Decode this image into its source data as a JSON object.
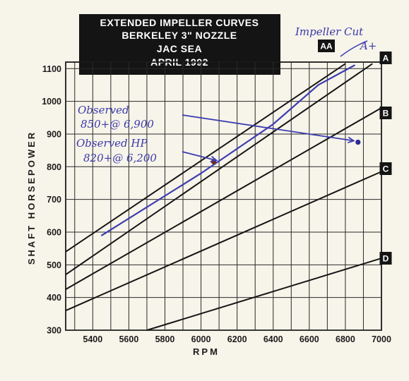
{
  "chart_data": {
    "type": "line",
    "title_lines": [
      "EXTENDED IMPELLER CURVES",
      "BERKELEY 3\" NOZZLE",
      "JAC SEA",
      "APRIL 1992"
    ],
    "xlabel": "RPM",
    "ylabel": "SHAFT HORSEPOWER",
    "xlim": [
      5250,
      7000
    ],
    "ylim": [
      300,
      1120
    ],
    "x_ticks": [
      5400,
      5600,
      5800,
      6000,
      6200,
      6400,
      6600,
      6800,
      7000
    ],
    "y_ticks": [
      300,
      400,
      500,
      600,
      700,
      800,
      900,
      1000,
      1100
    ],
    "grid": true,
    "series": [
      {
        "name": "AA",
        "points": [
          [
            5250,
            540
          ],
          [
            6800,
            1115
          ]
        ]
      },
      {
        "name": "A",
        "points": [
          [
            5250,
            470
          ],
          [
            6950,
            1115
          ]
        ]
      },
      {
        "name": "B",
        "points": [
          [
            5250,
            425
          ],
          [
            7000,
            980
          ]
        ]
      },
      {
        "name": "C",
        "points": [
          [
            5250,
            360
          ],
          [
            7000,
            785
          ]
        ]
      },
      {
        "name": "D",
        "points": [
          [
            5700,
            300
          ],
          [
            7000,
            520
          ]
        ]
      }
    ],
    "annotations": {
      "impeller_cut": "Impeller Cut",
      "a_plus": "A+",
      "observed_1_line1": "Observed",
      "observed_1_line2": "850+@ 6,900",
      "observed_2_line1": "Observed HP",
      "observed_2_line2": "820+@ 6,200",
      "handdrawn_curve": [
        [
          5450,
          590
        ],
        [
          6000,
          780
        ],
        [
          6400,
          930
        ],
        [
          6650,
          1050
        ],
        [
          6850,
          1110
        ]
      ],
      "observed_points": [
        [
          6070,
          815
        ],
        [
          6870,
          875
        ]
      ]
    }
  }
}
